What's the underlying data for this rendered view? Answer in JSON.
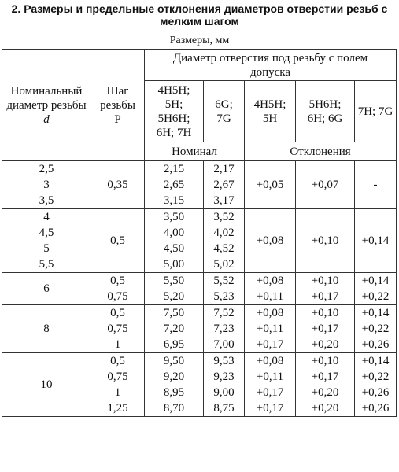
{
  "header": {
    "title": "2. Размеры и предельные отклонения диаметров отверстии резьб с мелким шагом",
    "units": "Размеры, мм"
  },
  "table": {
    "col1": "Номинальный диаметр резьбы",
    "col1_var": "d",
    "col2": "Шаг резьбы P",
    "span": "Диаметр отверстия под резьбу с полем допуска",
    "sub": [
      "4H5H; 5H; 5H6H; 6H; 7H",
      "6G; 7G",
      "4H5H; 5H",
      "5H6H; 6H; 6G",
      "7H; 7G"
    ],
    "nominal": "Номинал",
    "deviations": "Отклонения",
    "groups": [
      {
        "d": [
          "2,5",
          "3",
          "3,5"
        ],
        "p": [
          "0,35"
        ],
        "nom1": [
          "2,15",
          "2,65",
          "3,15"
        ],
        "nom2": [
          "2,17",
          "2,67",
          "3,17"
        ],
        "dev": [
          [
            "+0,05",
            "+0,07",
            "-"
          ]
        ]
      },
      {
        "d": [
          "4",
          "4,5",
          "5",
          "5,5"
        ],
        "p": [
          "0,5"
        ],
        "nom1": [
          "3,50",
          "4,00",
          "4,50",
          "5,00"
        ],
        "nom2": [
          "3,52",
          "4,02",
          "4,52",
          "5,02"
        ],
        "dev": [
          [
            "+0,08",
            "+0,10",
            "+0,14"
          ]
        ]
      },
      {
        "d": [
          "6"
        ],
        "p": [
          "0,5",
          "0,75"
        ],
        "nom1": [
          "5,50",
          "5,20"
        ],
        "nom2": [
          "5,52",
          "5,23"
        ],
        "dev": [
          [
            "+0,08",
            "+0,10",
            "+0,14"
          ],
          [
            "+0,11",
            "+0,17",
            "+0,22"
          ]
        ]
      },
      {
        "d": [
          "8"
        ],
        "p": [
          "0,5",
          "0,75",
          "1"
        ],
        "nom1": [
          "7,50",
          "7,20",
          "6,95"
        ],
        "nom2": [
          "7,52",
          "7,23",
          "7,00"
        ],
        "dev": [
          [
            "+0,08",
            "+0,10",
            "+0,14"
          ],
          [
            "+0,11",
            "+0,17",
            "+0,22"
          ],
          [
            "+0,17",
            "+0,20",
            "+0,26"
          ]
        ]
      },
      {
        "d": [
          "10"
        ],
        "p": [
          "0,5",
          "0,75",
          "1",
          "1,25"
        ],
        "nom1": [
          "9,50",
          "9,20",
          "8,95",
          "8,70"
        ],
        "nom2": [
          "9,53",
          "9,23",
          "9,00",
          "8,75"
        ],
        "dev": [
          [
            "+0,08",
            "+0,10",
            "+0,14"
          ],
          [
            "+0,11",
            "+0,17",
            "+0,22"
          ],
          [
            "+0,17",
            "+0,20",
            "+0,26"
          ],
          [
            "+0,17",
            "+0,20",
            "+0,26"
          ]
        ]
      }
    ]
  }
}
